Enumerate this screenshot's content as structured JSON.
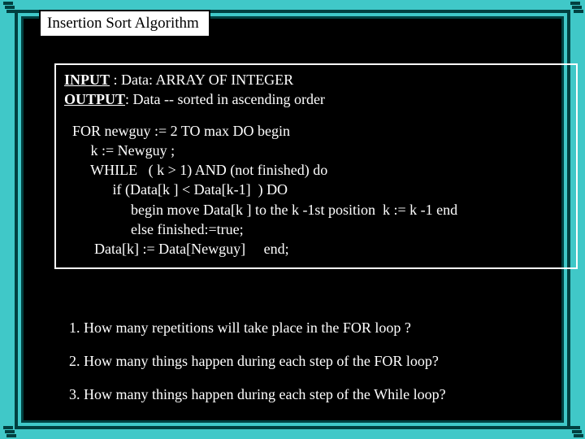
{
  "colors": {
    "background": "#40c8c8",
    "frame": "#004040",
    "panel": "#000000",
    "title_bg": "#ffffff",
    "text_light": "#ffffff",
    "text_dark": "#000000"
  },
  "title": "Insertion Sort Algorithm",
  "io": {
    "input_label": "INPUT",
    "input_text": " :    Data:  ARRAY OF INTEGER",
    "output_label": "OUTPUT",
    "output_text": ":     Data -- sorted in ascending order"
  },
  "code": {
    "l1": "FOR newguy  :=  2 TO  max   DO begin",
    "l2": "     k := Newguy ;",
    "l3": "     WHILE   ( k > 1) AND (not finished) do",
    "l4": "           if (Data[k ] < Data[k-1]  ) DO",
    "l5": "                begin move Data[k ] to the k -1st position  k := k -1 end",
    "l6": "                else finished:=true;",
    "l7": "      Data[k] := Data[Newguy]     end;"
  },
  "questions": {
    "q1": "1. How many repetitions will take place in the FOR loop ?",
    "q2": "2. How many things happen during each step of the FOR loop?",
    "q3": "3. How many things happen during each step of the While loop?"
  }
}
